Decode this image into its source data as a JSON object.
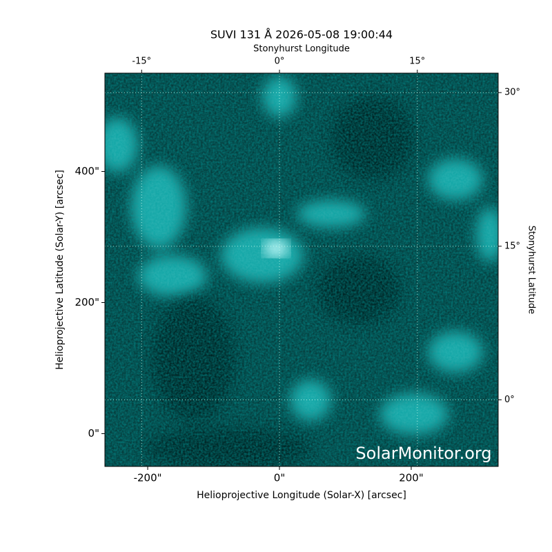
{
  "chart_data": {
    "type": "image",
    "title": "SUVI 131 Å 2026-05-08 19:00:44",
    "x_label": "Helioprojective Longitude (Solar-X) [arcsec]",
    "y_label": "Helioprojective Latitude (Solar-Y) [arcsec]",
    "x2_label": "Stonyhurst Longitude",
    "y2_label": "Stonyhurst Latitude",
    "watermark": "SolarMonitor.org",
    "xlim": [
      -265,
      332
    ],
    "ylim": [
      -50,
      550
    ],
    "xticks": [
      {
        "value": -200,
        "label": "-200\""
      },
      {
        "value": 0,
        "label": "0\""
      },
      {
        "value": 200,
        "label": "200\""
      }
    ],
    "yticks": [
      {
        "value": 0,
        "label": "0\""
      },
      {
        "value": 200,
        "label": "200\""
      },
      {
        "value": 400,
        "label": "400\""
      }
    ],
    "x2lim": [
      -19,
      23.8
    ],
    "x2ticks": [
      {
        "value": -15,
        "label": "-15°"
      },
      {
        "value": 0,
        "label": "0°"
      },
      {
        "value": 15,
        "label": "15°"
      }
    ],
    "y2lim": [
      -6.5,
      31.9
    ],
    "y2ticks": [
      {
        "value": 0,
        "label": "0°"
      },
      {
        "value": 15,
        "label": "15°"
      },
      {
        "value": 30,
        "label": "30°"
      }
    ],
    "grid": true
  }
}
